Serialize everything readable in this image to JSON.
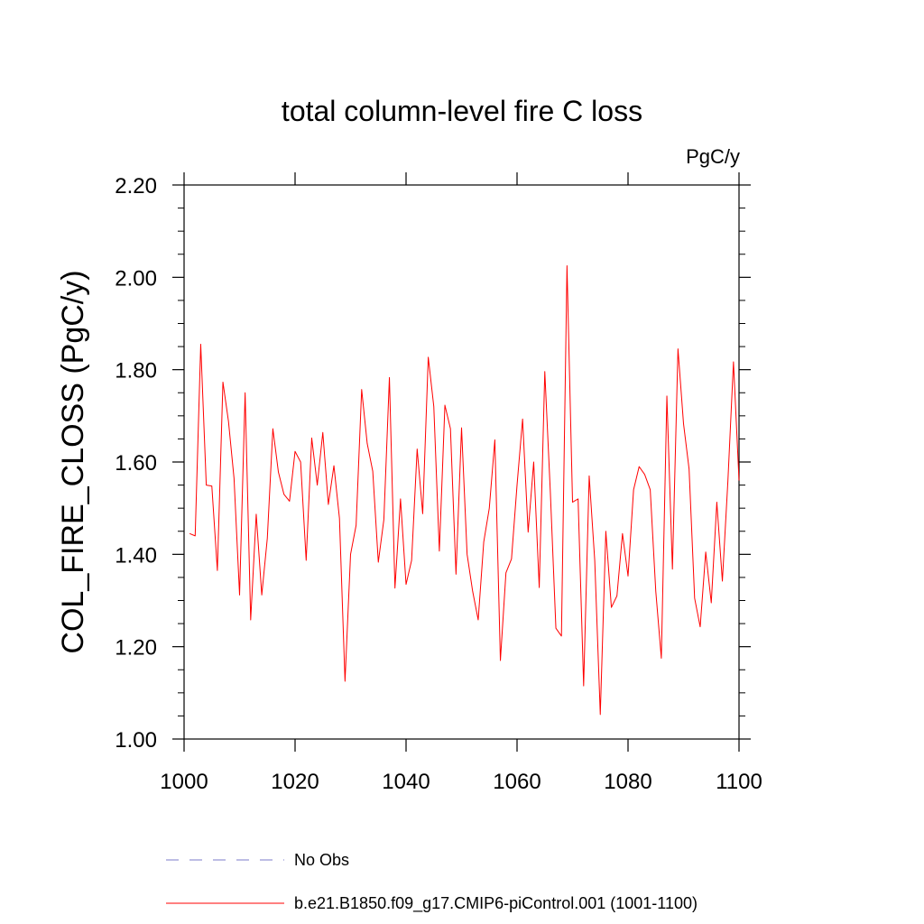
{
  "chart_data": {
    "type": "line",
    "title": "total column-level fire C loss",
    "units": "PgC/y",
    "ylabel": "COL_FIRE_CLOSS  (PgC/y)",
    "xlabel": "",
    "xlim": [
      1000,
      1100
    ],
    "ylim": [
      1.0,
      2.2
    ],
    "xticks": [
      1000,
      1020,
      1040,
      1060,
      1080,
      1100
    ],
    "xtick_labels": [
      "1000",
      "1020",
      "1040",
      "1060",
      "1080",
      "1100"
    ],
    "yticks": [
      1.0,
      1.2,
      1.4,
      1.6,
      1.8,
      2.0,
      2.2
    ],
    "ytick_labels": [
      "1.00",
      "1.20",
      "1.40",
      "1.60",
      "1.80",
      "2.00",
      "2.20"
    ],
    "grid": false,
    "legend_position": "bottom",
    "series": [
      {
        "name": "No Obs",
        "color": "#7b7bc8",
        "style": "dashed",
        "x": [],
        "values": []
      },
      {
        "name": "b.e21.B1850.f09_g17.CMIP6-piControl.001 (1001-1100)",
        "color": "#ff0000",
        "style": "solid",
        "x": [
          1001,
          1002,
          1003,
          1004,
          1005,
          1006,
          1007,
          1008,
          1009,
          1010,
          1011,
          1012,
          1013,
          1014,
          1015,
          1016,
          1017,
          1018,
          1019,
          1020,
          1021,
          1022,
          1023,
          1024,
          1025,
          1026,
          1027,
          1028,
          1029,
          1030,
          1031,
          1032,
          1033,
          1034,
          1035,
          1036,
          1037,
          1038,
          1039,
          1040,
          1041,
          1042,
          1043,
          1044,
          1045,
          1046,
          1047,
          1048,
          1049,
          1050,
          1051,
          1052,
          1053,
          1054,
          1055,
          1056,
          1057,
          1058,
          1059,
          1060,
          1061,
          1062,
          1063,
          1064,
          1065,
          1066,
          1067,
          1068,
          1069,
          1070,
          1071,
          1072,
          1073,
          1074,
          1075,
          1076,
          1077,
          1078,
          1079,
          1080,
          1081,
          1082,
          1083,
          1084,
          1085,
          1086,
          1087,
          1088,
          1089,
          1090,
          1091,
          1092,
          1093,
          1094,
          1095,
          1096,
          1097,
          1098,
          1099,
          1100
        ],
        "values": [
          1.445,
          1.44,
          1.855,
          1.55,
          1.548,
          1.365,
          1.773,
          1.688,
          1.565,
          1.312,
          1.75,
          1.258,
          1.487,
          1.312,
          1.435,
          1.672,
          1.578,
          1.53,
          1.515,
          1.623,
          1.6,
          1.387,
          1.652,
          1.55,
          1.664,
          1.508,
          1.592,
          1.478,
          1.125,
          1.4,
          1.463,
          1.757,
          1.64,
          1.58,
          1.383,
          1.475,
          1.783,
          1.327,
          1.52,
          1.335,
          1.387,
          1.628,
          1.488,
          1.827,
          1.72,
          1.407,
          1.723,
          1.672,
          1.357,
          1.674,
          1.4,
          1.32,
          1.258,
          1.427,
          1.5,
          1.648,
          1.17,
          1.36,
          1.39,
          1.55,
          1.693,
          1.448,
          1.6,
          1.328,
          1.796,
          1.535,
          1.24,
          1.223,
          2.025,
          1.513,
          1.52,
          1.115,
          1.57,
          1.387,
          1.053,
          1.45,
          1.285,
          1.31,
          1.445,
          1.353,
          1.54,
          1.59,
          1.573,
          1.54,
          1.32,
          1.175,
          1.743,
          1.368,
          1.845,
          1.683,
          1.585,
          1.305,
          1.243,
          1.405,
          1.295,
          1.513,
          1.342,
          1.56,
          1.817,
          1.56
        ]
      }
    ]
  }
}
